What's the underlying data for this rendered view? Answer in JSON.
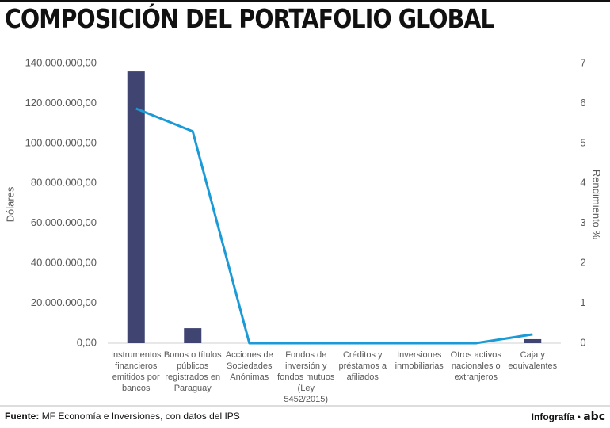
{
  "chart_data": {
    "type": "combo",
    "title": "COMPOSICIÓN DEL PORTAFOLIO GLOBAL",
    "y_label": "Dólares",
    "y2_label": "Rendimiento %",
    "categories": [
      "Instrumentos financieros emitidos por bancos",
      "Bonos o títulos públicos registrados en Paraguay",
      "Acciones de Sociedades Anónimas",
      "Fondos de inversión y fondos mutuos (Ley 5452/2015)",
      "Créditos y préstamos a afiliados",
      "Inversiones inmobiliarias",
      "Otros activos nacionales o extranjeros",
      "Caja y equivalentes"
    ],
    "series": [
      {
        "type": "bar",
        "color": "#3f4570",
        "values": [
          136000000,
          7500000,
          0,
          0,
          0,
          0,
          0,
          2000000
        ]
      },
      {
        "type": "line",
        "axis": "y2",
        "color": "#1a9ad6",
        "values": [
          5.87,
          5.3,
          0,
          0,
          0,
          0,
          0,
          0.22
        ]
      }
    ],
    "ylim": [
      0,
      140000000
    ],
    "yticks": [
      {
        "value": 0,
        "label": "0,00"
      },
      {
        "value": 20000000,
        "label": "20.000.000,00"
      },
      {
        "value": 40000000,
        "label": "40.000.000,00"
      },
      {
        "value": 60000000,
        "label": "60.000.000,00"
      },
      {
        "value": 80000000,
        "label": "80.000.000,00"
      },
      {
        "value": 100000000,
        "label": "100.000.000,00"
      },
      {
        "value": 120000000,
        "label": "120.000.000,00"
      },
      {
        "value": 140000000,
        "label": "140.000.000,00"
      }
    ],
    "y2lim": [
      0,
      7
    ],
    "y2ticks": [
      0,
      1,
      2,
      3,
      4,
      5,
      6,
      7
    ],
    "source_label": "Fuente:",
    "source": "MF Economía e Inversiones, con datos del IPS",
    "credit": "Infografía •",
    "logo": "abc"
  }
}
